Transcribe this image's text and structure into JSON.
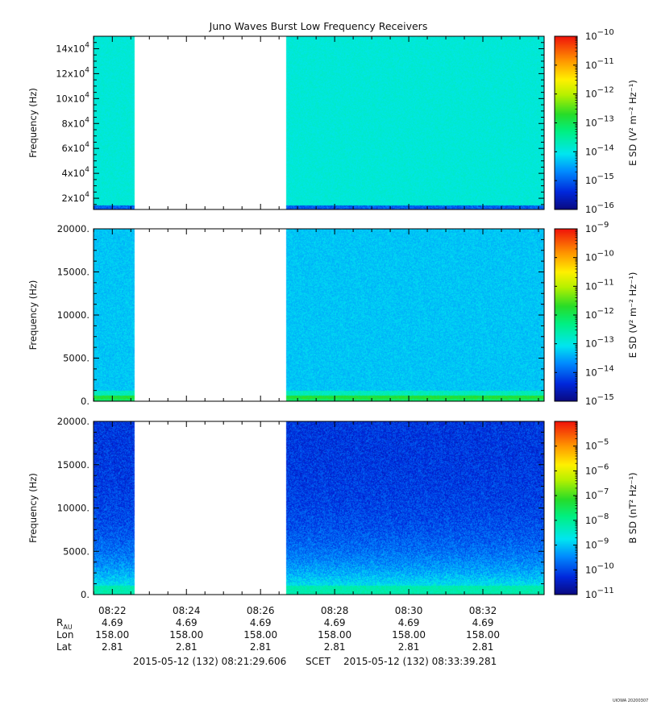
{
  "chart_data": [
    {
      "type": "heatmap",
      "title": "Juno Waves Burst Low Frequency Receivers",
      "ylabel": "Frequency (Hz)",
      "yscale": "linear",
      "ylim": [
        11000,
        150000
      ],
      "yticks": [
        20000,
        40000,
        60000,
        80000,
        100000,
        120000,
        140000
      ],
      "ytick_labels": [
        {
          "base": "2x10",
          "exp": "4"
        },
        {
          "base": "4x10",
          "exp": "4"
        },
        {
          "base": "6x10",
          "exp": "4"
        },
        {
          "base": "8x10",
          "exp": "4"
        },
        {
          "base": "10x10",
          "exp": "4"
        },
        {
          "base": "12x10",
          "exp": "4"
        },
        {
          "base": "14x10",
          "exp": "4"
        }
      ],
      "colorbar": {
        "label": "E SD (V² m⁻² Hz⁻¹)",
        "log": true,
        "range_exp": [
          -16,
          -10
        ],
        "tick_exps": [
          -16,
          -15,
          -14,
          -13,
          -12,
          -11,
          -10
        ],
        "colorscale": "rainbow"
      },
      "data_gap_minutes": [
        1.1,
        5.2
      ],
      "background_level_exp": -13.9,
      "low_freq_enhancement_exp": -15.0
    },
    {
      "type": "heatmap",
      "ylabel": "Frequency (Hz)",
      "yscale": "linear",
      "ylim": [
        0,
        20000
      ],
      "yticks": [
        0,
        5000,
        10000,
        15000,
        20000
      ],
      "ytick_labels": [
        "0.",
        "5000.",
        "10000.",
        "15000.",
        "20000."
      ],
      "colorbar": {
        "label": "E SD (V² m⁻² Hz⁻¹)",
        "log": true,
        "range_exp": [
          -15,
          -9
        ],
        "tick_exps": [
          -15,
          -14,
          -13,
          -12,
          -11,
          -10,
          -9
        ],
        "colorscale": "rainbow"
      },
      "data_gap_minutes": [
        1.1,
        5.2
      ],
      "background_level_exp": -13.3,
      "low_freq_enhancement_exp": -11.8
    },
    {
      "type": "heatmap",
      "ylabel": "Frequency (Hz)",
      "yscale": "linear",
      "ylim": [
        0,
        20000
      ],
      "yticks": [
        0,
        5000,
        10000,
        15000,
        20000
      ],
      "ytick_labels": [
        "0.",
        "5000.",
        "10000.",
        "15000.",
        "20000."
      ],
      "colorbar": {
        "label": "B SD (nT² Hz⁻¹)",
        "log": true,
        "range_exp": [
          -11,
          -4
        ],
        "tick_exps": [
          -11,
          -10,
          -9,
          -8,
          -7,
          -6,
          -5
        ],
        "colorscale": "rainbow"
      },
      "data_gap_minutes": [
        1.1,
        5.2
      ],
      "background_level_exp": -10.2,
      "low_freq_enhancement_exp": -8.2
    }
  ],
  "time_axis": {
    "start": "2015-05-12 (132) 08:21:29.606",
    "end": "2015-05-12 (132) 08:33:39.281",
    "frame": "SCET",
    "duration_minutes": 12.16,
    "tick_labels": [
      "08:22",
      "08:24",
      "08:26",
      "08:28",
      "08:30",
      "08:32"
    ],
    "tick_offsets_minutes": [
      0.507,
      2.507,
      4.507,
      6.507,
      8.507,
      10.507
    ]
  },
  "ephemeris": {
    "rows": [
      {
        "label": "R",
        "sub": "AU",
        "values": [
          "4.69",
          "4.69",
          "4.69",
          "4.69",
          "4.69",
          "4.69"
        ]
      },
      {
        "label": "Lon",
        "values": [
          "158.00",
          "158.00",
          "158.00",
          "158.00",
          "158.00",
          "158.00"
        ]
      },
      {
        "label": "Lat",
        "values": [
          "2.81",
          "2.81",
          "2.81",
          "2.81",
          "2.81",
          "2.81"
        ]
      }
    ]
  },
  "footer": {
    "start": "2015-05-12 (132) 08:21:29.606",
    "frame": "SCET",
    "end": "2015-05-12 (132) 08:33:39.281"
  },
  "stamp": "UIOWA 20200307"
}
